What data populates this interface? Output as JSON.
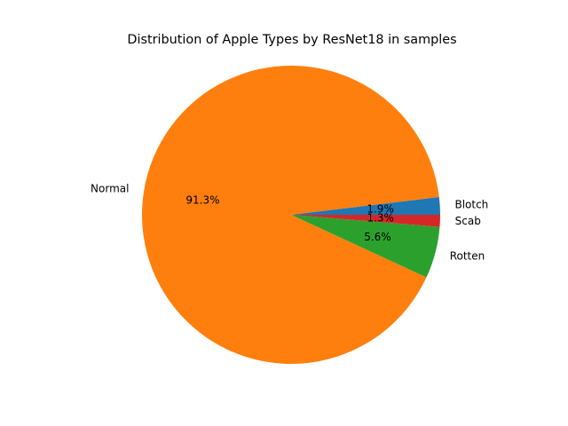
{
  "chart_data": {
    "type": "pie",
    "title": "Distribution of Apple Types by ResNet18 in samples",
    "categories": [
      "Blotch",
      "Normal",
      "Rotten",
      "Scab"
    ],
    "values": [
      1.9,
      91.3,
      5.6,
      1.3
    ],
    "value_labels": [
      "1.9%",
      "91.3%",
      "5.6%",
      "1.3%"
    ],
    "colors": [
      "#1f77b4",
      "#ff7f0e",
      "#2ca02c",
      "#d62728"
    ],
    "start_angle_deg": 0,
    "direction": "counterclockwise"
  }
}
